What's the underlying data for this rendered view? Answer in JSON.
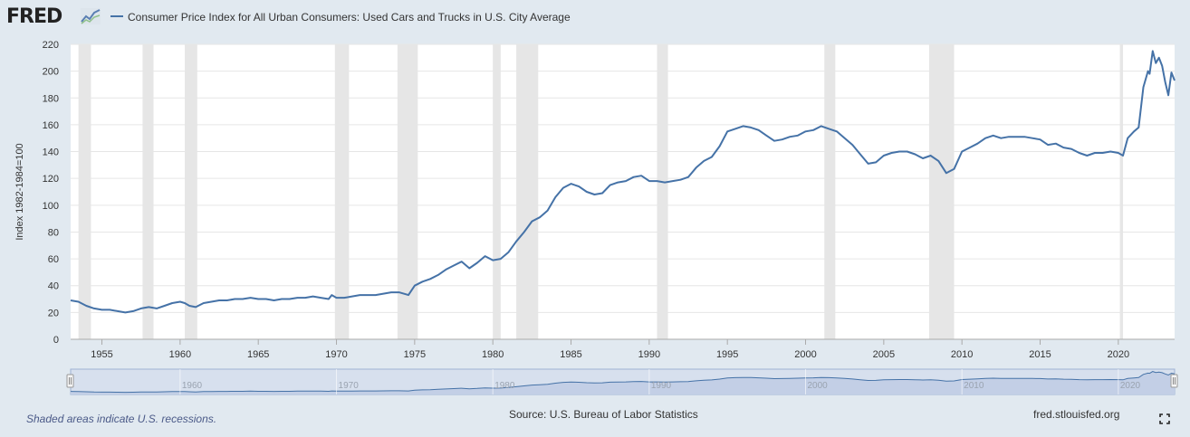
{
  "header": {
    "logo_text": "FRED",
    "logo_icon": "trend-line-icon",
    "series_title": "Consumer Price Index for All Urban Consumers: Used Cars and Trucks in U.S. City Average"
  },
  "footer": {
    "recession_note": "Shaded areas indicate U.S. recessions.",
    "source": "Source: U.S. Bureau of Labor Statistics",
    "url": "fred.stlouisfed.org",
    "fullscreen_icon": "fullscreen-icon"
  },
  "colors": {
    "background": "#e1e9f0",
    "plot_background": "#ffffff",
    "line": "#4572a7",
    "recession_band": "#e6e6e6",
    "navigator_fill": "#c3cfe6",
    "navigator_line": "#4572a7"
  },
  "navigator": {
    "tick_labels": [
      "1960",
      "1970",
      "1980",
      "1990",
      "2000",
      "2010",
      "2020"
    ]
  },
  "chart_data": {
    "type": "line",
    "title": "Consumer Price Index for All Urban Consumers: Used Cars and Trucks in U.S. City Average",
    "xlabel": "",
    "ylabel": "Index 1982-1984=100",
    "xlim": [
      1953.0,
      2023.6
    ],
    "ylim": [
      0,
      220
    ],
    "y_ticks": [
      0,
      20,
      40,
      60,
      80,
      100,
      120,
      140,
      160,
      180,
      200,
      220
    ],
    "x_ticks": [
      "1955",
      "1960",
      "1965",
      "1970",
      "1975",
      "1980",
      "1985",
      "1990",
      "1995",
      "2000",
      "2005",
      "2010",
      "2015",
      "2020"
    ],
    "grid": "horizontal",
    "recessions": [
      [
        1953.5,
        1954.3
      ],
      [
        1957.6,
        1958.3
      ],
      [
        1960.3,
        1961.1
      ],
      [
        1969.9,
        1970.8
      ],
      [
        1973.9,
        1975.2
      ],
      [
        1980.0,
        1980.5
      ],
      [
        1981.5,
        1982.9
      ],
      [
        1990.5,
        1991.2
      ],
      [
        2001.2,
        2001.9
      ],
      [
        2007.9,
        2009.5
      ],
      [
        2020.1,
        2020.3
      ]
    ],
    "series": [
      {
        "x": [
          1953.0,
          1953.5,
          1954.0,
          1954.5,
          1955.0,
          1955.5,
          1956.0,
          1956.5,
          1957.0,
          1957.5,
          1958.0,
          1958.5,
          1959.0,
          1959.5,
          1960.0,
          1960.3,
          1960.6,
          1961.0,
          1961.5,
          1962.0,
          1962.5,
          1963.0,
          1963.5,
          1964.0,
          1964.5,
          1965.0,
          1965.5,
          1966.0,
          1966.5,
          1967.0,
          1967.5,
          1968.0,
          1968.5,
          1969.0,
          1969.5,
          1969.7,
          1970.0,
          1970.5,
          1971.0,
          1971.5,
          1972.0,
          1972.5,
          1973.0,
          1973.5,
          1974.0,
          1974.3,
          1974.6,
          1975.0,
          1975.5,
          1976.0,
          1976.5,
          1977.0,
          1977.5,
          1978.0,
          1978.5,
          1979.0,
          1979.5,
          1980.0,
          1980.5,
          1981.0,
          1981.5,
          1982.0,
          1982.5,
          1983.0,
          1983.5,
          1984.0,
          1984.5,
          1985.0,
          1985.5,
          1986.0,
          1986.5,
          1987.0,
          1987.5,
          1988.0,
          1988.5,
          1989.0,
          1989.5,
          1990.0,
          1990.5,
          1991.0,
          1991.5,
          1992.0,
          1992.5,
          1993.0,
          1993.5,
          1994.0,
          1994.5,
          1995.0,
          1995.5,
          1996.0,
          1996.5,
          1997.0,
          1997.5,
          1998.0,
          1998.5,
          1999.0,
          1999.5,
          2000.0,
          2000.5,
          2001.0,
          2001.5,
          2002.0,
          2002.5,
          2003.0,
          2003.5,
          2004.0,
          2004.5,
          2005.0,
          2005.5,
          2006.0,
          2006.5,
          2007.0,
          2007.5,
          2008.0,
          2008.5,
          2009.0,
          2009.5,
          2010.0,
          2010.5,
          2011.0,
          2011.5,
          2012.0,
          2012.5,
          2013.0,
          2013.5,
          2014.0,
          2014.5,
          2015.0,
          2015.5,
          2016.0,
          2016.5,
          2017.0,
          2017.5,
          2018.0,
          2018.5,
          2019.0,
          2019.5,
          2020.0,
          2020.3,
          2020.6,
          2021.0,
          2021.3,
          2021.6,
          2021.9,
          2022.0,
          2022.2,
          2022.4,
          2022.6,
          2022.8,
          2023.0,
          2023.2,
          2023.4,
          2023.6
        ],
        "values": [
          29,
          28,
          25,
          23,
          22,
          22,
          21,
          20,
          21,
          23,
          24,
          23,
          25,
          27,
          28,
          27,
          25,
          24,
          27,
          28,
          29,
          29,
          30,
          30,
          31,
          30,
          30,
          29,
          30,
          30,
          31,
          31,
          32,
          31,
          30,
          33,
          31,
          31,
          32,
          33,
          33,
          33,
          34,
          35,
          35,
          34,
          33,
          40,
          43,
          45,
          48,
          52,
          55,
          58,
          53,
          57,
          62,
          59,
          60,
          65,
          73,
          80,
          88,
          91,
          96,
          106,
          113,
          116,
          114,
          110,
          108,
          109,
          115,
          117,
          118,
          121,
          122,
          118,
          118,
          117,
          118,
          119,
          121,
          128,
          133,
          136,
          144,
          155,
          157,
          159,
          158,
          156,
          152,
          148,
          149,
          151,
          152,
          155,
          156,
          159,
          157,
          155,
          150,
          145,
          138,
          131,
          132,
          137,
          139,
          140,
          140,
          138,
          135,
          137,
          133,
          124,
          127,
          140,
          143,
          146,
          150,
          152,
          150,
          151,
          151,
          151,
          150,
          149,
          145,
          146,
          143,
          142,
          139,
          137,
          139,
          139,
          140,
          139,
          137,
          150,
          155,
          158,
          188,
          200,
          198,
          215,
          206,
          210,
          204,
          192,
          182,
          199,
          193
        ]
      }
    ]
  }
}
